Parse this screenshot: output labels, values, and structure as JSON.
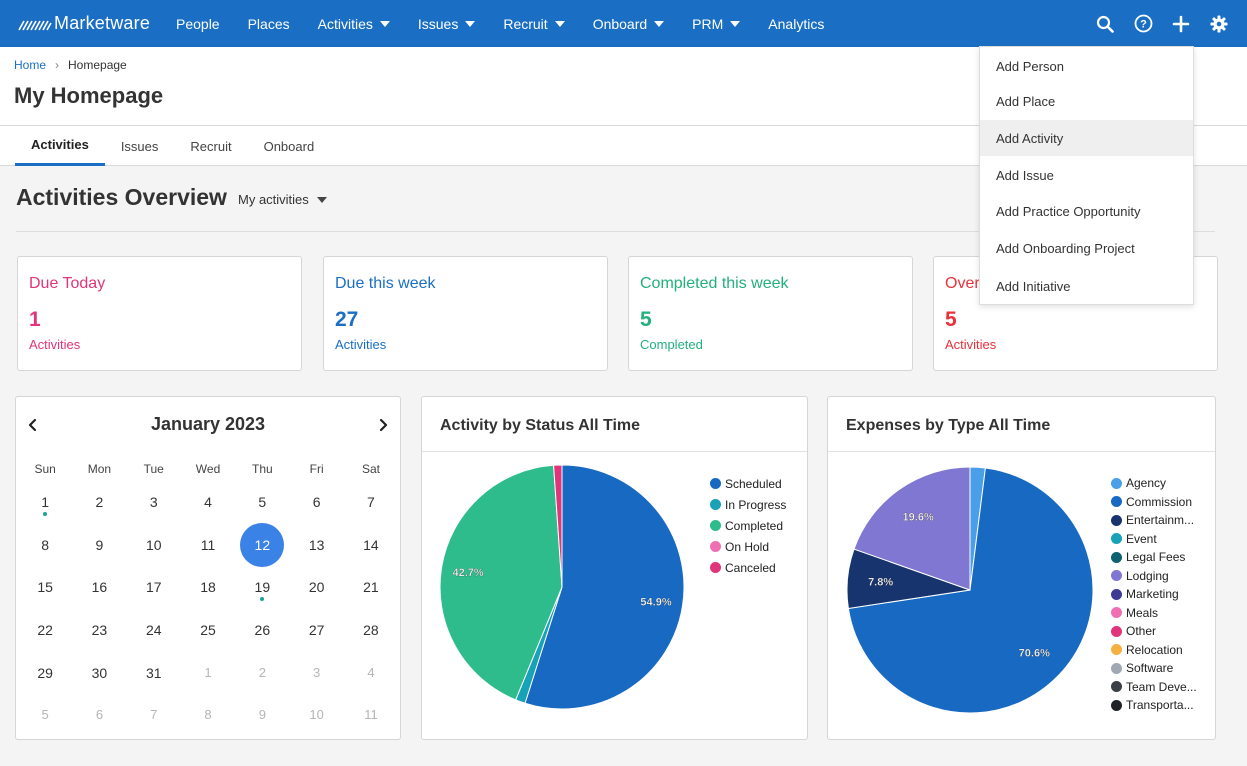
{
  "app": {
    "logo_text": "Marketware"
  },
  "nav": {
    "items": [
      {
        "label": "People",
        "has_caret": false
      },
      {
        "label": "Places",
        "has_caret": false
      },
      {
        "label": "Activities",
        "has_caret": true
      },
      {
        "label": "Issues",
        "has_caret": true
      },
      {
        "label": "Recruit",
        "has_caret": true
      },
      {
        "label": "Onboard",
        "has_caret": true
      },
      {
        "label": "PRM",
        "has_caret": true
      },
      {
        "label": "Analytics",
        "has_caret": false
      }
    ],
    "icons": [
      "search-icon",
      "help-icon",
      "plus-icon",
      "gear-icon"
    ]
  },
  "breadcrumb": {
    "home": "Home",
    "current": "Homepage"
  },
  "page": {
    "title": "My Homepage"
  },
  "tabs": [
    {
      "label": "Activities",
      "active": true
    },
    {
      "label": "Issues",
      "active": false
    },
    {
      "label": "Recruit",
      "active": false
    },
    {
      "label": "Onboard",
      "active": false
    }
  ],
  "overview": {
    "title": "Activities Overview",
    "filter": "My activities"
  },
  "stats": [
    {
      "title": "Due Today",
      "value": "1",
      "sub": "Activities",
      "color": "#e0357a"
    },
    {
      "title": "Due this week",
      "value": "27",
      "sub": "Activities",
      "color": "#1a6fc4"
    },
    {
      "title": "Completed this week",
      "value": "5",
      "sub": "Completed",
      "color": "#22b07d"
    },
    {
      "title": "Over",
      "value": "5",
      "sub": "Activities",
      "color": "#e8323c"
    }
  ],
  "calendar": {
    "month_label": "January 2023",
    "dow": [
      "Sun",
      "Mon",
      "Tue",
      "Wed",
      "Thu",
      "Fri",
      "Sat"
    ],
    "weeks": [
      [
        "1",
        "2",
        "3",
        "4",
        "5",
        "6",
        "7"
      ],
      [
        "8",
        "9",
        "10",
        "11",
        "12",
        "13",
        "14"
      ],
      [
        "15",
        "16",
        "17",
        "18",
        "19",
        "20",
        "21"
      ],
      [
        "22",
        "23",
        "24",
        "25",
        "26",
        "27",
        "28"
      ],
      [
        "29",
        "30",
        "31",
        "1",
        "2",
        "3",
        "4"
      ],
      [
        "5",
        "6",
        "7",
        "8",
        "9",
        "10",
        "11"
      ]
    ],
    "selected": "12",
    "event_dots": [
      "1",
      "19"
    ]
  },
  "charts": {
    "status_title": "Activity by Status All Time",
    "expenses_title": "Expenses by Type All Time"
  },
  "chart_data": [
    {
      "type": "pie",
      "title": "Activity by Status All Time",
      "series": [
        {
          "name": "Scheduled",
          "value": 54.9,
          "color": "#1769c2",
          "label": "54.9%"
        },
        {
          "name": "In Progress",
          "value": 1.3,
          "color": "#17a2b8",
          "label": ""
        },
        {
          "name": "Completed",
          "value": 42.7,
          "color": "#2fbc8c",
          "label": "42.7%"
        },
        {
          "name": "On Hold",
          "value": 0.0,
          "color": "#f06fb3",
          "label": ""
        },
        {
          "name": "Canceled",
          "value": 1.1,
          "color": "#e0357a",
          "label": ""
        }
      ],
      "legend_position": "right"
    },
    {
      "type": "pie",
      "title": "Expenses by Type All Time",
      "series": [
        {
          "name": "Agency",
          "value": 2.0,
          "color": "#4a9fe8",
          "label": ""
        },
        {
          "name": "Commission",
          "value": 70.6,
          "color": "#1769c2",
          "label": "70.6%"
        },
        {
          "name": "Entertainm...",
          "value": 7.8,
          "color": "#17346e",
          "label": "7.8%"
        },
        {
          "name": "Event",
          "value": 0.0,
          "color": "#17a2b8",
          "label": ""
        },
        {
          "name": "Legal Fees",
          "value": 0.0,
          "color": "#0f6070",
          "label": ""
        },
        {
          "name": "Lodging",
          "value": 19.6,
          "color": "#7f77d1",
          "label": "19.6%"
        },
        {
          "name": "Marketing",
          "value": 0.0,
          "color": "#3d3a94",
          "label": ""
        },
        {
          "name": "Meals",
          "value": 0.0,
          "color": "#f06fb3",
          "label": ""
        },
        {
          "name": "Other",
          "value": 0.0,
          "color": "#e0357a",
          "label": ""
        },
        {
          "name": "Relocation",
          "value": 0.0,
          "color": "#f5b042",
          "label": ""
        },
        {
          "name": "Software",
          "value": 0.0,
          "color": "#a0a8b4",
          "label": ""
        },
        {
          "name": "Team Deve...",
          "value": 0.0,
          "color": "#3a3f47",
          "label": ""
        },
        {
          "name": "Transporta...",
          "value": 0.0,
          "color": "#1f2328",
          "label": ""
        }
      ],
      "legend_position": "right"
    }
  ],
  "dropdown": {
    "items": [
      {
        "label": "Add Person",
        "hover": false
      },
      {
        "label": "Add Place",
        "hover": false
      },
      {
        "label": "Add Activity",
        "hover": true
      },
      {
        "label": "Add Issue",
        "hover": false
      },
      {
        "label": "Add Practice Opportunity",
        "hover": false
      },
      {
        "label": "Add Onboarding Project",
        "hover": false
      },
      {
        "label": "Add Initiative",
        "hover": false
      }
    ]
  }
}
